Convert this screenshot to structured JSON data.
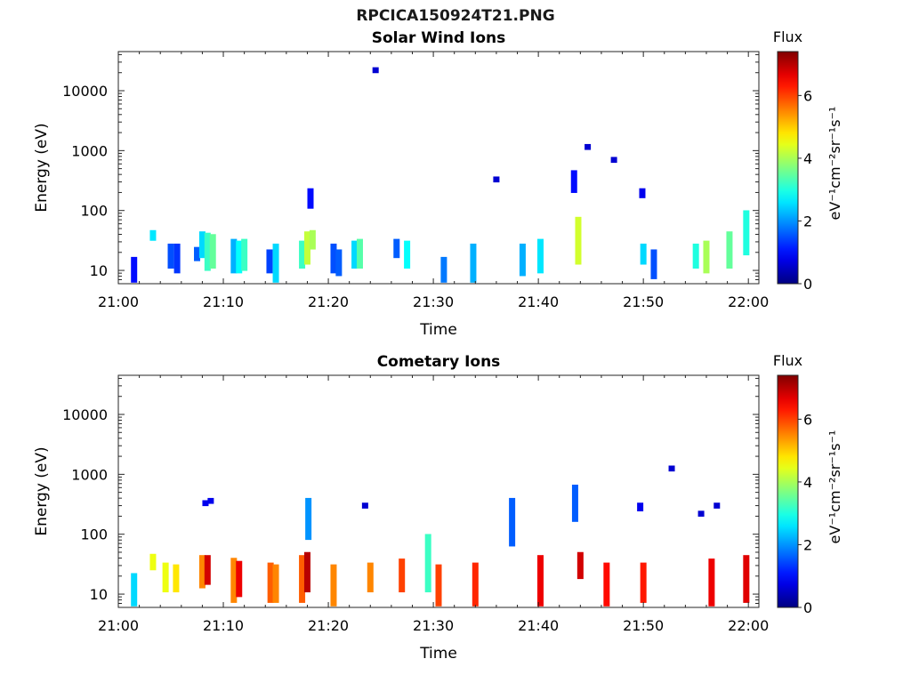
{
  "figure": {
    "title": "RPCICA150924T21.PNG"
  },
  "chart_data": [
    {
      "type": "heatmap",
      "title": "Solar Wind Ions",
      "xlabel": "Time",
      "ylabel": "Energy (eV)",
      "y_scale": "log",
      "xlim": [
        "21:00",
        "22:01"
      ],
      "ylim": [
        6,
        45000
      ],
      "x_ticks": [
        "21:00",
        "21:10",
        "21:20",
        "21:30",
        "21:40",
        "21:50",
        "22:00"
      ],
      "y_ticks": [
        "10",
        "100",
        "1000",
        "10000"
      ],
      "colorbar": {
        "label": "Flux",
        "units": "eV⁻¹cm⁻²sr⁻¹s⁻¹",
        "range": [
          0,
          7.4
        ],
        "ticks": [
          "0",
          "2",
          "4",
          "6"
        ],
        "colormap": "jet"
      },
      "grid": false,
      "points": [
        {
          "t": 1.5,
          "e": [
            7,
            15
          ],
          "f": 1.0
        },
        {
          "t": 3.3,
          "e": [
            35,
            42
          ],
          "f": 2.6
        },
        {
          "t": 5.0,
          "e": [
            12,
            25
          ],
          "f": 1.5
        },
        {
          "t": 5.6,
          "e": [
            10,
            25
          ],
          "f": 1.3
        },
        {
          "t": 7.5,
          "e": [
            16,
            22
          ],
          "f": 1.6
        },
        {
          "t": 8.0,
          "e": [
            18,
            40
          ],
          "f": 2.5
        },
        {
          "t": 8.5,
          "e": [
            11,
            38
          ],
          "f": 3.2
        },
        {
          "t": 9.0,
          "e": [
            12,
            36
          ],
          "f": 3.5
        },
        {
          "t": 11.0,
          "e": [
            10,
            30
          ],
          "f": 2.2
        },
        {
          "t": 11.5,
          "e": [
            10,
            28
          ],
          "f": 2.8
        },
        {
          "t": 12.0,
          "e": [
            11,
            30
          ],
          "f": 3.2
        },
        {
          "t": 14.4,
          "e": [
            10,
            20
          ],
          "f": 1.4
        },
        {
          "t": 15.0,
          "e": [
            7,
            25
          ],
          "f": 2.5
        },
        {
          "t": 17.5,
          "e": [
            12,
            28
          ],
          "f": 3.2
        },
        {
          "t": 18.0,
          "e": [
            14,
            40
          ],
          "f": 4.2
        },
        {
          "t": 18.3,
          "e": [
            120,
            210
          ],
          "f": 1.0
        },
        {
          "t": 18.5,
          "e": [
            25,
            42
          ],
          "f": 4.0
        },
        {
          "t": 20.5,
          "e": [
            10,
            25
          ],
          "f": 1.5
        },
        {
          "t": 21.0,
          "e": [
            9,
            20
          ],
          "f": 1.6
        },
        {
          "t": 22.5,
          "e": [
            12,
            28
          ],
          "f": 2.5
        },
        {
          "t": 23.0,
          "e": [
            12,
            30
          ],
          "f": 3.4
        },
        {
          "t": 24.5,
          "e": [
            22000,
            22000
          ],
          "f": 0.6
        },
        {
          "t": 26.5,
          "e": [
            18,
            30
          ],
          "f": 1.6
        },
        {
          "t": 27.5,
          "e": [
            12,
            28
          ],
          "f": 2.8
        },
        {
          "t": 31.0,
          "e": [
            7,
            15
          ],
          "f": 1.8
        },
        {
          "t": 33.8,
          "e": [
            7,
            25
          ],
          "f": 2.2
        },
        {
          "t": 36.0,
          "e": [
            330,
            330
          ],
          "f": 0.6
        },
        {
          "t": 38.5,
          "e": [
            9,
            25
          ],
          "f": 2.2
        },
        {
          "t": 40.2,
          "e": [
            10,
            30
          ],
          "f": 2.6
        },
        {
          "t": 43.4,
          "e": [
            220,
            420
          ],
          "f": 1.0
        },
        {
          "t": 43.8,
          "e": [
            14,
            70
          ],
          "f": 4.3
        },
        {
          "t": 44.7,
          "e": [
            1150,
            1150
          ],
          "f": 0.6
        },
        {
          "t": 47.2,
          "e": [
            700,
            700
          ],
          "f": 0.6
        },
        {
          "t": 49.9,
          "e": [
            180,
            210
          ],
          "f": 0.8
        },
        {
          "t": 50.0,
          "e": [
            14,
            25
          ],
          "f": 2.5
        },
        {
          "t": 51.0,
          "e": [
            8,
            20
          ],
          "f": 1.5
        },
        {
          "t": 55.0,
          "e": [
            12,
            25
          ],
          "f": 3.0
        },
        {
          "t": 56.0,
          "e": [
            10,
            28
          ],
          "f": 4.0
        },
        {
          "t": 58.2,
          "e": [
            12,
            40
          ],
          "f": 3.5
        },
        {
          "t": 59.8,
          "e": [
            20,
            90
          ],
          "f": 3.0
        }
      ]
    },
    {
      "type": "heatmap",
      "title": "Cometary Ions",
      "xlabel": "Time",
      "ylabel": "Energy (eV)",
      "y_scale": "log",
      "xlim": [
        "21:00",
        "22:01"
      ],
      "ylim": [
        6,
        45000
      ],
      "x_ticks": [
        "21:00",
        "21:10",
        "21:20",
        "21:30",
        "21:40",
        "21:50",
        "22:00"
      ],
      "y_ticks": [
        "10",
        "100",
        "1000",
        "10000"
      ],
      "colorbar": {
        "label": "Flux",
        "units": "eV⁻¹cm⁻²sr⁻¹s⁻¹",
        "range": [
          0,
          7.4
        ],
        "ticks": [
          "0",
          "2",
          "4",
          "6"
        ],
        "colormap": "jet"
      },
      "grid": false,
      "points": [
        {
          "t": 1.5,
          "e": [
            7,
            20
          ],
          "f": 2.5
        },
        {
          "t": 3.3,
          "e": [
            28,
            42
          ],
          "f": 4.5
        },
        {
          "t": 4.5,
          "e": [
            12,
            30
          ],
          "f": 4.5
        },
        {
          "t": 5.5,
          "e": [
            12,
            28
          ],
          "f": 4.8
        },
        {
          "t": 8.0,
          "e": [
            14,
            40
          ],
          "f": 5.5
        },
        {
          "t": 8.5,
          "e": [
            16,
            40
          ],
          "f": 6.8
        },
        {
          "t": 8.3,
          "e": [
            330,
            330
          ],
          "f": 0.8
        },
        {
          "t": 8.8,
          "e": [
            360,
            360
          ],
          "f": 0.8
        },
        {
          "t": 11.0,
          "e": [
            8,
            36
          ],
          "f": 5.5
        },
        {
          "t": 11.5,
          "e": [
            10,
            32
          ],
          "f": 6.6
        },
        {
          "t": 14.5,
          "e": [
            8,
            30
          ],
          "f": 5.8
        },
        {
          "t": 15.0,
          "e": [
            8,
            28
          ],
          "f": 5.5
        },
        {
          "t": 17.5,
          "e": [
            8,
            40
          ],
          "f": 5.8
        },
        {
          "t": 18.0,
          "e": [
            12,
            45
          ],
          "f": 7.0
        },
        {
          "t": 18.1,
          "e": [
            90,
            360
          ],
          "f": 2.0
        },
        {
          "t": 20.5,
          "e": [
            7,
            28
          ],
          "f": 5.5
        },
        {
          "t": 23.5,
          "e": [
            300,
            300
          ],
          "f": 0.6
        },
        {
          "t": 24.0,
          "e": [
            12,
            30
          ],
          "f": 5.5
        },
        {
          "t": 27.0,
          "e": [
            12,
            35
          ],
          "f": 6.0
        },
        {
          "t": 29.5,
          "e": [
            12,
            90
          ],
          "f": 3.2
        },
        {
          "t": 30.5,
          "e": [
            7,
            28
          ],
          "f": 6.0
        },
        {
          "t": 34.0,
          "e": [
            7,
            30
          ],
          "f": 6.2
        },
        {
          "t": 37.5,
          "e": [
            70,
            360
          ],
          "f": 1.6
        },
        {
          "t": 40.2,
          "e": [
            7,
            40
          ],
          "f": 6.6
        },
        {
          "t": 43.5,
          "e": [
            180,
            600
          ],
          "f": 1.6
        },
        {
          "t": 44.0,
          "e": [
            20,
            45
          ],
          "f": 6.8
        },
        {
          "t": 46.5,
          "e": [
            7,
            30
          ],
          "f": 6.4
        },
        {
          "t": 49.7,
          "e": [
            270,
            300
          ],
          "f": 0.8
        },
        {
          "t": 50.0,
          "e": [
            8,
            30
          ],
          "f": 6.3
        },
        {
          "t": 52.7,
          "e": [
            1250,
            1250
          ],
          "f": 0.6
        },
        {
          "t": 55.5,
          "e": [
            220,
            220
          ],
          "f": 0.6
        },
        {
          "t": 56.5,
          "e": [
            7,
            35
          ],
          "f": 6.6
        },
        {
          "t": 57.0,
          "e": [
            300,
            300
          ],
          "f": 0.6
        },
        {
          "t": 59.8,
          "e": [
            8,
            40
          ],
          "f": 6.7
        }
      ]
    }
  ]
}
